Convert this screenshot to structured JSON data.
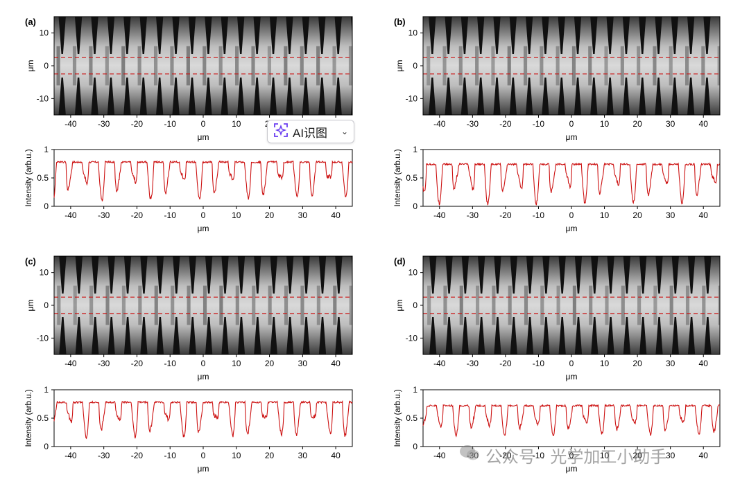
{
  "colors": {
    "profile": "#cc1111",
    "dash": "#cc1111",
    "axis": "#000000",
    "accent": "#6a3df0"
  },
  "axes": {
    "x_unit": "μm",
    "y_unit": "μm",
    "profile_ylabel": "Intensity (arb.u.)",
    "x_ticks": [
      "-40",
      "-30",
      "-20",
      "-10",
      "0",
      "10",
      "20",
      "30",
      "40"
    ],
    "image_y_ticks": [
      "10",
      "0",
      "-10"
    ],
    "profile_y_ticks": [
      "1",
      "0.5",
      "0"
    ]
  },
  "panels": [
    {
      "label": "(a)",
      "seed": 3,
      "offset": 0.0,
      "xlim": [
        -45,
        45
      ],
      "image_ylim": [
        -15,
        15
      ],
      "dashed_lines_um": [
        2.5,
        -2.5
      ],
      "profile_ylim": [
        0,
        1
      ]
    },
    {
      "label": "(b)",
      "seed": 7,
      "offset": 0.35,
      "xlim": [
        -45,
        45
      ],
      "image_ylim": [
        -15,
        15
      ],
      "dashed_lines_um": [
        2.5,
        -2.5
      ],
      "profile_ylim": [
        0,
        1
      ]
    },
    {
      "label": "(c)",
      "seed": 11,
      "offset": 0.15,
      "xlim": [
        -45,
        45
      ],
      "image_ylim": [
        -15,
        15
      ],
      "dashed_lines_um": [
        2.5,
        -2.5
      ],
      "profile_ylim": [
        0,
        1
      ]
    },
    {
      "label": "(d)",
      "seed": 17,
      "offset": 0.55,
      "xlim": [
        -45,
        45
      ],
      "image_ylim": [
        -15,
        15
      ],
      "dashed_lines_um": [
        2.5,
        -2.5
      ],
      "profile_ylim": [
        0,
        1
      ]
    }
  ],
  "chart_data": [
    {
      "type": "line",
      "panel": "(a)",
      "title": "",
      "xlabel": "μm",
      "ylabel": "Intensity (arb.u.)",
      "xlim": [
        -45,
        45
      ],
      "ylim": [
        0,
        1
      ],
      "description_values": {
        "plateau": 0.78,
        "dip_min": 0.1,
        "period_um": 4.9
      }
    },
    {
      "type": "line",
      "panel": "(b)",
      "title": "",
      "xlabel": "μm",
      "ylabel": "Intensity (arb.u.)",
      "xlim": [
        -45,
        45
      ],
      "ylim": [
        0,
        1
      ],
      "description_values": {
        "plateau": 0.74,
        "dip_min": 0.05,
        "period_um": 4.9
      }
    },
    {
      "type": "line",
      "panel": "(c)",
      "title": "",
      "xlabel": "μm",
      "ylabel": "Intensity (arb.u.)",
      "xlim": [
        -45,
        45
      ],
      "ylim": [
        0,
        1
      ],
      "description_values": {
        "plateau": 0.78,
        "dip_min": 0.15,
        "period_um": 4.9
      }
    },
    {
      "type": "line",
      "panel": "(d)",
      "title": "",
      "xlabel": "μm",
      "ylabel": "Intensity (arb.u.)",
      "xlim": [
        -45,
        45
      ],
      "ylim": [
        0,
        1
      ],
      "description_values": {
        "plateau": 0.72,
        "dip_min": 0.2,
        "period_um": 4.9
      }
    }
  ],
  "overlay": {
    "ai_button_label": "AI识图",
    "watermark": "公众号 · 光学加工小助手"
  },
  "icons": {
    "ai": "ai-scan-icon",
    "chevron": "chevron-down-icon",
    "wechat": "wechat-icon"
  }
}
